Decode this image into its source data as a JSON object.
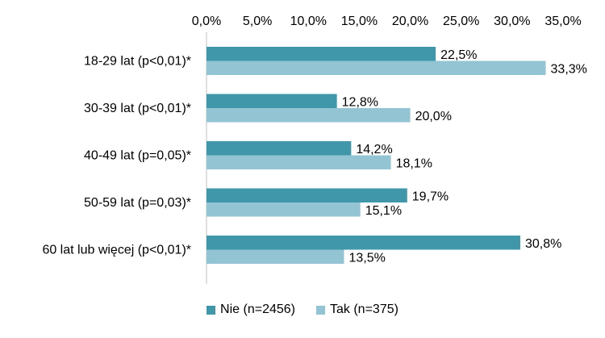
{
  "chart_data": {
    "type": "bar",
    "orientation": "horizontal",
    "categories": [
      "18-29 lat (p<0,01)*",
      "30-39 lat (p<0,01)*",
      "40-49 lat (p=0,05)*",
      "50-59 lat (p=0,03)*",
      "60 lat lub więcej (p<0,01)*"
    ],
    "series": [
      {
        "name": "Nie (n=2456)",
        "color": "#3f97a9",
        "values": [
          22.5,
          12.8,
          14.2,
          19.7,
          30.8
        ],
        "labels": [
          "22,5%",
          "12,8%",
          "14,2%",
          "19,7%",
          "30,8%"
        ]
      },
      {
        "name": "Tak (n=375)",
        "color": "#93c4d4",
        "values": [
          33.3,
          20.0,
          18.1,
          15.1,
          13.5
        ],
        "labels": [
          "33,3%",
          "20,0%",
          "18,1%",
          "15,1%",
          "13,5%"
        ]
      }
    ],
    "xlim": [
      0,
      35
    ],
    "x_ticks": [
      "0,0%",
      "5,0%",
      "10,0%",
      "15,0%",
      "20,0%",
      "25,0%",
      "30,0%",
      "35,0%"
    ],
    "x_axis_position": "top",
    "grid": false,
    "legend_position": "bottom"
  }
}
